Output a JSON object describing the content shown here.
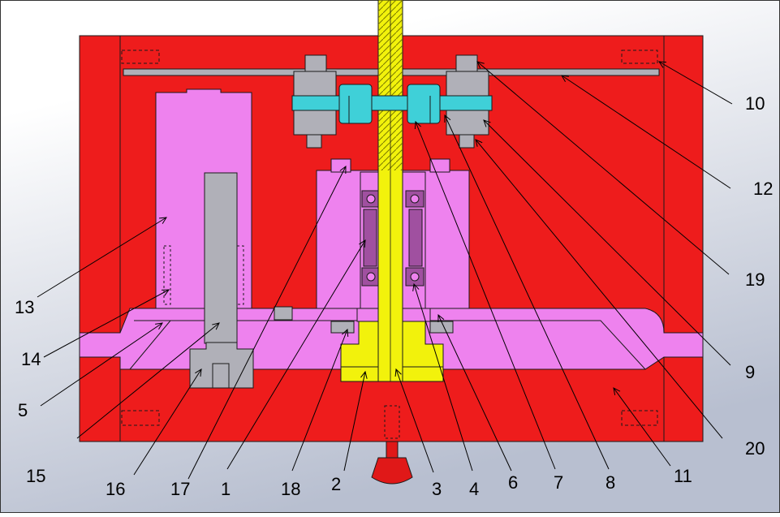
{
  "diagram": {
    "colors": {
      "background_top": "#ffffff",
      "background_bottom": "#b8bfd0",
      "housing": "#ee1c1c",
      "pink_parts": "#ee82ee",
      "yellow_parts": "#f2f20c",
      "cyan_parts": "#3fd0d8",
      "gray_parts": "#b0b0b8",
      "bearing": "#a050a0",
      "outline": "#1a1a1a"
    },
    "callouts": [
      {
        "id": "c10",
        "label": "10"
      },
      {
        "id": "c12",
        "label": "12"
      },
      {
        "id": "c19",
        "label": "19"
      },
      {
        "id": "c9",
        "label": "9"
      },
      {
        "id": "c20",
        "label": "20"
      },
      {
        "id": "c13",
        "label": "13"
      },
      {
        "id": "c14",
        "label": "14"
      },
      {
        "id": "c5",
        "label": "5"
      },
      {
        "id": "c15",
        "label": "15"
      },
      {
        "id": "c16",
        "label": "16"
      },
      {
        "id": "c17",
        "label": "17"
      },
      {
        "id": "c1",
        "label": "1"
      },
      {
        "id": "c18",
        "label": "18"
      },
      {
        "id": "c2",
        "label": "2"
      },
      {
        "id": "c3",
        "label": "3"
      },
      {
        "id": "c4",
        "label": "4"
      },
      {
        "id": "c6",
        "label": "6"
      },
      {
        "id": "c7",
        "label": "7"
      },
      {
        "id": "c8",
        "label": "8"
      },
      {
        "id": "c11",
        "label": "11"
      }
    ]
  }
}
